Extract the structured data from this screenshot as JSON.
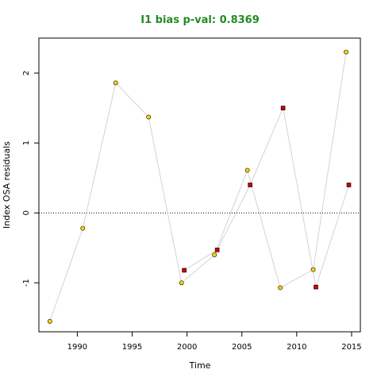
{
  "chart_data": {
    "type": "scatter",
    "title": "I1 bias p-val: 0.8369",
    "title_color": "#228B22",
    "xlabel": "Time",
    "ylabel": "Index OSA residuals",
    "xlim": [
      1986.5,
      2015.8
    ],
    "ylim": [
      -1.7,
      2.5
    ],
    "x_ticks": [
      1990,
      1995,
      2000,
      2005,
      2010,
      2015
    ],
    "y_ticks": [
      -1,
      0,
      1,
      2
    ],
    "reference_line": {
      "y": 0,
      "style": "dotted"
    },
    "line_color": "#d3d3d3",
    "series": [
      {
        "marker": "circle",
        "color": "#FFD700",
        "x": [
          1987.5,
          1990.5,
          1993.5,
          1996.5,
          1999.5,
          2002.5,
          2005.5,
          2008.5,
          2011.5,
          2014.5
        ],
        "y": [
          -1.55,
          -0.22,
          1.86,
          1.37,
          -1.0,
          -0.6,
          0.61,
          -1.07,
          -0.81,
          2.3
        ]
      },
      {
        "marker": "square",
        "color": "#CC0000",
        "x": [
          1999.75,
          2002.75,
          2005.75,
          2008.75,
          2011.75,
          2014.75
        ],
        "y": [
          -0.82,
          -0.53,
          0.4,
          1.5,
          -1.06,
          0.4
        ]
      }
    ]
  }
}
